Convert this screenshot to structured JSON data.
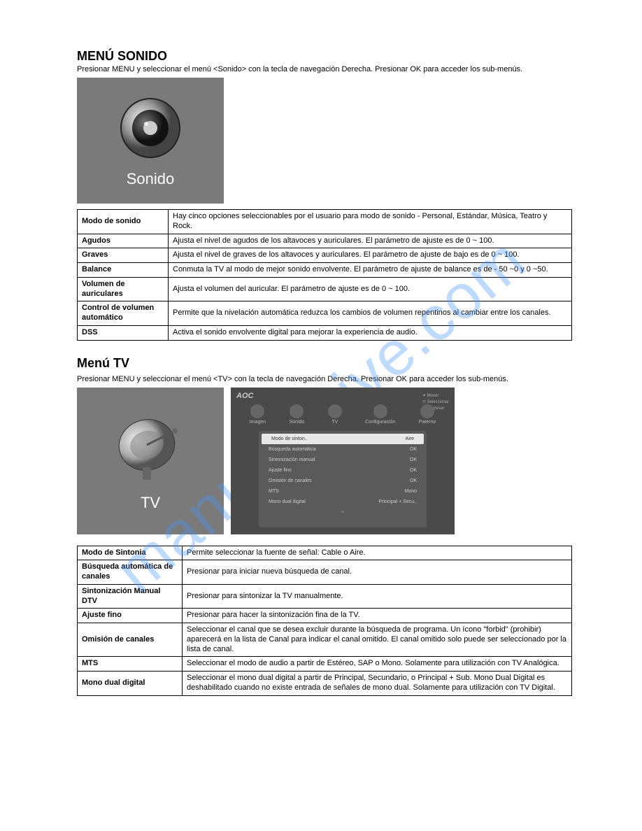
{
  "watermark": "manualshive.com",
  "sonido": {
    "title": "MENÚ SONIDO",
    "sub": "Presionar MENU y seleccionar el menú <Sonido> con la tecla de navegación Derecha. Presionar OK para acceder los sub-menús.",
    "tile_label": "Sonido",
    "tile_bg": "#7a7a7a",
    "rows": [
      {
        "label": "Modo de sonido",
        "desc": "Hay cinco opciones seleccionables por el usuario para modo de sonido - Personal, Estándar, Música, Teatro y Rock."
      },
      {
        "label": "Agudos",
        "desc": "Ajusta el nivel de agudos de los altavoces y auriculares. El parámetro de ajuste es de  0 ~ 100."
      },
      {
        "label": "Graves",
        "desc": "Ajusta el nivel de graves de los altavoces y auriculares. El parámetro de ajuste de bajo es de  0 ~ 100."
      },
      {
        "label": "Balance",
        "desc": "Conmuta la TV al modo de mejor sonido envolvente. El parámetro de ajuste de balance es de - 50 ~0 y 0 ~50."
      },
      {
        "label": "Volumen de auriculares",
        "desc": "Ajusta el volumen del auricular. El parámetro de ajuste es de  0 ~ 100."
      },
      {
        "label": "Control de volumen automático",
        "desc": "Permite que la nivelación automática reduzca los cambios de volumen repentinos al cambiar entre los canales."
      },
      {
        "label": "DSS",
        "desc": "Activa el sonido envolvente digital para mejorar la experiencia de audio."
      }
    ]
  },
  "tv": {
    "title": "Menú TV",
    "sub": "Presionar MENU y seleccionar el menú <TV> con la tecla de navegación Derecha. Presionar OK para acceder los sub-menús.",
    "tile_label": "TV",
    "tile_bg": "#7a7a7a",
    "panel": {
      "brand": "AOC",
      "tabs": [
        "Imagen",
        "Sonido",
        "TV",
        "Configuración",
        "Paterno"
      ],
      "hints": [
        "✦ Mover",
        "⊙ Seleccionar",
        "↺ Regresar"
      ],
      "items": [
        {
          "l": "Modo de sinton..",
          "r": "Aire",
          "hl": true
        },
        {
          "l": "Búsqueda automática",
          "r": "OK"
        },
        {
          "l": "Sintonización manual",
          "r": "OK"
        },
        {
          "l": "Ajuste fino",
          "r": "OK"
        },
        {
          "l": "Omisión de canales",
          "r": "OK"
        },
        {
          "l": "MTS",
          "r": "Mono"
        },
        {
          "l": "Mono dual digital",
          "r": "Principal + Secu.."
        }
      ]
    },
    "rows": [
      {
        "label": "Modo de Sintonia",
        "desc": "Permite seleccionar la fuente de señal: Cable o Aire."
      },
      {
        "label": "Búsqueda automática de canales",
        "desc": "Presionar para iniciar nueva búsqueda de canal."
      },
      {
        "label": "Sintonización Manual DTV",
        "desc": "Presionar para sintonizar la TV manualmente."
      },
      {
        "label": "Ajuste fino",
        "desc": "Presionar para hacer la sintonización fina de la TV."
      },
      {
        "label": "Omisión de canales",
        "desc": "Seleccionar el canal que se desea excluir durante la búsqueda de programa. Un ícono \"forbid\" (prohibir) aparecerá en la lista de Canal para indicar el canal omitido.  El canal omitido solo puede ser seleccionado por la lista de canal."
      },
      {
        "label": "MTS",
        "desc": "Seleccionar el modo de audio a partir de Estéreo, SAP o Mono. Solamente para utilización con TV Analógica."
      },
      {
        "label": "Mono dual digital",
        "desc": "Seleccionar el mono dual digital a partir de Principal, Secundario, o Principal + Sub. Mono Dual Digital es deshabilitado cuando no existe entrada de señales de mono dual. Solamente para utilización con TV Digital."
      }
    ]
  }
}
